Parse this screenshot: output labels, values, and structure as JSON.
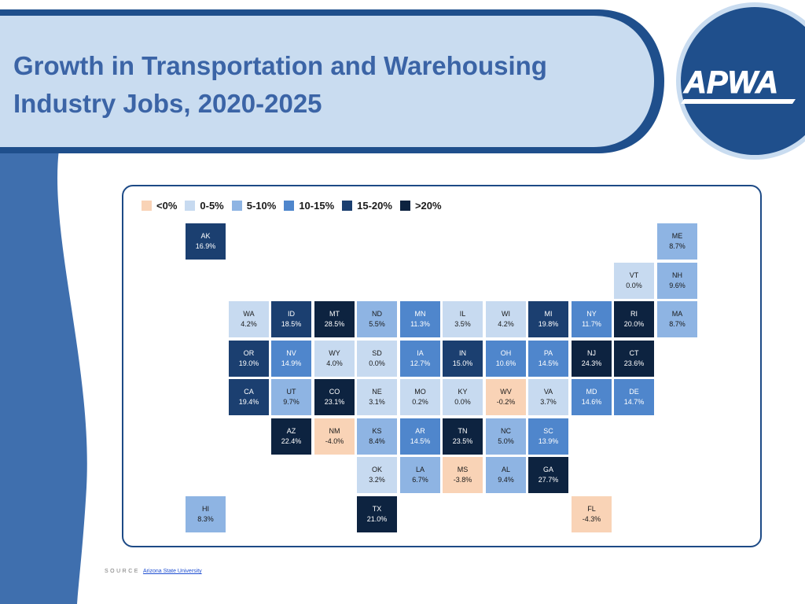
{
  "title": {
    "line1": "Growth in Transportation and Warehousing",
    "line2": "Industry Jobs, 2020-2025"
  },
  "logo": {
    "text": "APWA",
    "icon": "apwa-logo"
  },
  "colors": {
    "neg": "#f9d3b6",
    "c0_5": "#c7daf0",
    "c5_10": "#8eb4e3",
    "c10_15": "#4f86cc",
    "c15_20": "#1b3f70",
    "c20p": "#0d2340",
    "title": "#3b64a6",
    "frame": "#1d4a86",
    "header_band": "#c9dcf0"
  },
  "legend": [
    {
      "label": "<0%",
      "color": "#f9d3b6"
    },
    {
      "label": "0-5%",
      "color": "#c7daf0"
    },
    {
      "label": "5-10%",
      "color": "#8eb4e3"
    },
    {
      "label": "10-15%",
      "color": "#4f86cc"
    },
    {
      "label": "15-20%",
      "color": "#1b3f70"
    },
    {
      "label": ">20%",
      "color": "#0d2340"
    }
  ],
  "chart_data": {
    "type": "tile-map",
    "title": "Growth in Transportation and Warehousing Industry Jobs, 2020-2025",
    "unit": "%",
    "legend": [
      "<0%",
      "0-5%",
      "5-10%",
      "10-15%",
      "15-20%",
      ">20%"
    ],
    "states": [
      {
        "abbr": "AK",
        "label": "16.9%",
        "value": 16.9,
        "col": 0,
        "row": 0
      },
      {
        "abbr": "ME",
        "label": "8.7%",
        "value": 8.7,
        "col": 11,
        "row": 0
      },
      {
        "abbr": "VT",
        "label": "0.0%",
        "value": 0.0,
        "col": 10,
        "row": 1
      },
      {
        "abbr": "NH",
        "label": "9.6%",
        "value": 9.6,
        "col": 11,
        "row": 1
      },
      {
        "abbr": "WA",
        "label": "4.2%",
        "value": 4.2,
        "col": 1,
        "row": 2
      },
      {
        "abbr": "ID",
        "label": "18.5%",
        "value": 18.5,
        "col": 2,
        "row": 2
      },
      {
        "abbr": "MT",
        "label": "28.5%",
        "value": 28.5,
        "col": 3,
        "row": 2
      },
      {
        "abbr": "ND",
        "label": "5.5%",
        "value": 5.5,
        "col": 4,
        "row": 2
      },
      {
        "abbr": "MN",
        "label": "11.3%",
        "value": 11.3,
        "col": 5,
        "row": 2
      },
      {
        "abbr": "IL",
        "label": "3.5%",
        "value": 3.5,
        "col": 6,
        "row": 2
      },
      {
        "abbr": "WI",
        "label": "4.2%",
        "value": 4.2,
        "col": 7,
        "row": 2
      },
      {
        "abbr": "MI",
        "label": "19.8%",
        "value": 19.8,
        "col": 8,
        "row": 2
      },
      {
        "abbr": "NY",
        "label": "11.7%",
        "value": 11.7,
        "col": 9,
        "row": 2
      },
      {
        "abbr": "RI",
        "label": "20.0%",
        "value": 20.0,
        "col": 10,
        "row": 2
      },
      {
        "abbr": "MA",
        "label": "8.7%",
        "value": 8.7,
        "col": 11,
        "row": 2
      },
      {
        "abbr": "OR",
        "label": "19.0%",
        "value": 19.0,
        "col": 1,
        "row": 3
      },
      {
        "abbr": "NV",
        "label": "14.9%",
        "value": 14.9,
        "col": 2,
        "row": 3
      },
      {
        "abbr": "WY",
        "label": "4.0%",
        "value": 4.0,
        "col": 3,
        "row": 3
      },
      {
        "abbr": "SD",
        "label": "0.0%",
        "value": 0.0,
        "col": 4,
        "row": 3
      },
      {
        "abbr": "IA",
        "label": "12.7%",
        "value": 12.7,
        "col": 5,
        "row": 3
      },
      {
        "abbr": "IN",
        "label": "15.0%",
        "value": 15.0,
        "col": 6,
        "row": 3
      },
      {
        "abbr": "OH",
        "label": "10.6%",
        "value": 10.6,
        "col": 7,
        "row": 3
      },
      {
        "abbr": "PA",
        "label": "14.5%",
        "value": 14.5,
        "col": 8,
        "row": 3
      },
      {
        "abbr": "NJ",
        "label": "24.3%",
        "value": 24.3,
        "col": 9,
        "row": 3
      },
      {
        "abbr": "CT",
        "label": "23.6%",
        "value": 23.6,
        "col": 10,
        "row": 3
      },
      {
        "abbr": "CA",
        "label": "19.4%",
        "value": 19.4,
        "col": 1,
        "row": 4
      },
      {
        "abbr": "UT",
        "label": "9.7%",
        "value": 9.7,
        "col": 2,
        "row": 4
      },
      {
        "abbr": "CO",
        "label": "23.1%",
        "value": 23.1,
        "col": 3,
        "row": 4
      },
      {
        "abbr": "NE",
        "label": "3.1%",
        "value": 3.1,
        "col": 4,
        "row": 4
      },
      {
        "abbr": "MO",
        "label": "0.2%",
        "value": 0.2,
        "col": 5,
        "row": 4
      },
      {
        "abbr": "KY",
        "label": "0.0%",
        "value": 0.0,
        "col": 6,
        "row": 4
      },
      {
        "abbr": "WV",
        "label": "-0.2%",
        "value": -0.2,
        "col": 7,
        "row": 4
      },
      {
        "abbr": "VA",
        "label": "3.7%",
        "value": 3.7,
        "col": 8,
        "row": 4
      },
      {
        "abbr": "MD",
        "label": "14.6%",
        "value": 14.6,
        "col": 9,
        "row": 4
      },
      {
        "abbr": "DE",
        "label": "14.7%",
        "value": 14.7,
        "col": 10,
        "row": 4
      },
      {
        "abbr": "AZ",
        "label": "22.4%",
        "value": 22.4,
        "col": 2,
        "row": 5
      },
      {
        "abbr": "NM",
        "label": "-4.0%",
        "value": -4.0,
        "col": 3,
        "row": 5
      },
      {
        "abbr": "KS",
        "label": "8.4%",
        "value": 8.4,
        "col": 4,
        "row": 5
      },
      {
        "abbr": "AR",
        "label": "14.5%",
        "value": 14.5,
        "col": 5,
        "row": 5
      },
      {
        "abbr": "TN",
        "label": "23.5%",
        "value": 23.5,
        "col": 6,
        "row": 5
      },
      {
        "abbr": "NC",
        "label": "5.0%",
        "value": 5.0,
        "col": 7,
        "row": 5
      },
      {
        "abbr": "SC",
        "label": "13.9%",
        "value": 13.9,
        "col": 8,
        "row": 5
      },
      {
        "abbr": "OK",
        "label": "3.2%",
        "value": 3.2,
        "col": 4,
        "row": 6
      },
      {
        "abbr": "LA",
        "label": "6.7%",
        "value": 6.7,
        "col": 5,
        "row": 6
      },
      {
        "abbr": "MS",
        "label": "-3.8%",
        "value": -3.8,
        "col": 6,
        "row": 6
      },
      {
        "abbr": "AL",
        "label": "9.4%",
        "value": 9.4,
        "col": 7,
        "row": 6
      },
      {
        "abbr": "GA",
        "label": "27.7%",
        "value": 27.7,
        "col": 8,
        "row": 6
      },
      {
        "abbr": "HI",
        "label": "8.3%",
        "value": 8.3,
        "col": 0,
        "row": 7
      },
      {
        "abbr": "TX",
        "label": "21.0%",
        "value": 21.0,
        "col": 4,
        "row": 7
      },
      {
        "abbr": "FL",
        "label": "-4.3%",
        "value": -4.3,
        "col": 9,
        "row": 7
      }
    ]
  },
  "source": {
    "label": "SOURCE",
    "link_text": "Arizona State University"
  }
}
